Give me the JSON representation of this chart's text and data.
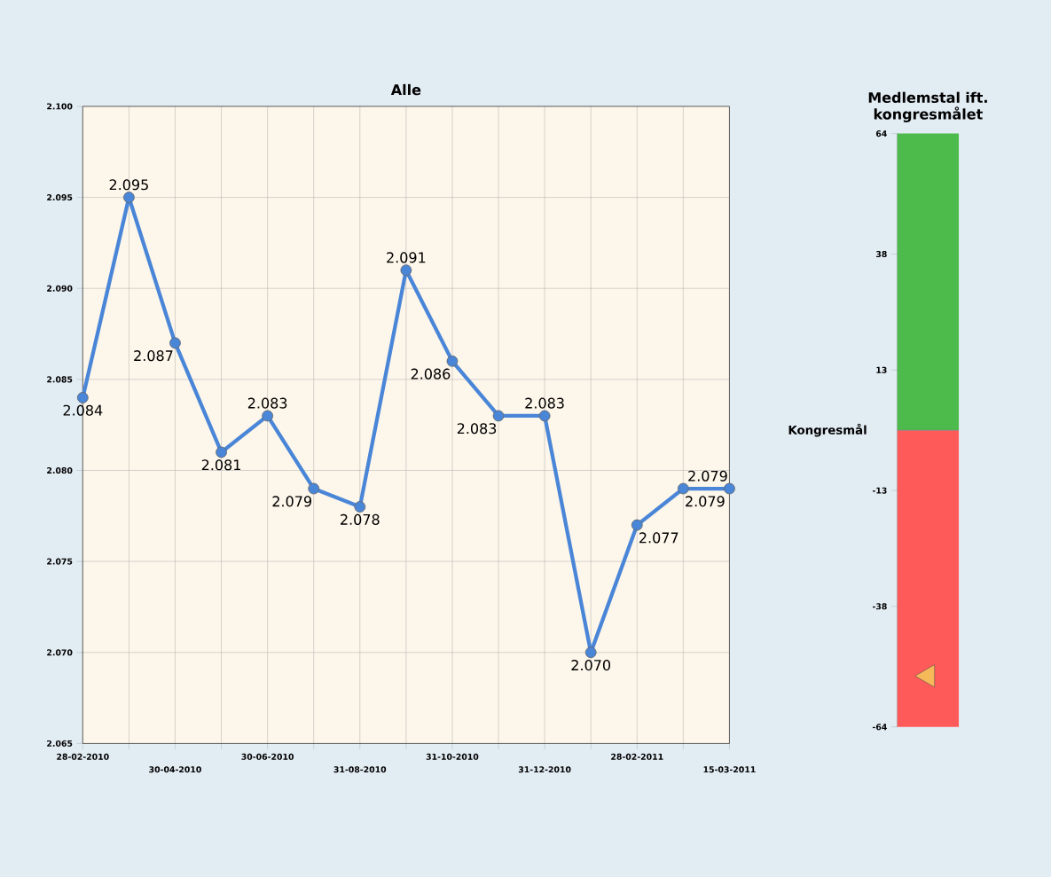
{
  "chart_data": [
    {
      "type": "line",
      "title": "Alle",
      "categories": [
        "28-02-2010",
        null,
        "30-04-2010",
        null,
        "30-06-2010",
        null,
        "31-08-2010",
        null,
        "31-10-2010",
        null,
        "31-12-2010",
        null,
        "28-02-2011",
        null,
        "15-03-2011"
      ],
      "values": [
        2084,
        2095,
        2087,
        2081,
        2083,
        2079,
        2078,
        2091,
        2086,
        2083,
        2083,
        2070,
        2077,
        2079,
        2079
      ],
      "value_labels": [
        "2.084",
        "2.095",
        "2.087",
        "2.081",
        "2.083",
        "2.079",
        "2.078",
        "2.091",
        "2.086",
        "2.083",
        "2.083",
        "2.070",
        "2.077",
        "2.079",
        "2.079"
      ],
      "color": "#4a86d8",
      "marker": "circle",
      "line_style": "solid",
      "grid": true,
      "ylim": [
        2065,
        2100
      ],
      "yticks": [
        {
          "value": 2065,
          "label": "2.065"
        },
        {
          "value": 2070,
          "label": "2.070"
        },
        {
          "value": 2075,
          "label": "2.075"
        },
        {
          "value": 2080,
          "label": "2.080"
        },
        {
          "value": 2085,
          "label": "2.085"
        },
        {
          "value": 2090,
          "label": "2.090"
        },
        {
          "value": 2095,
          "label": "2.095"
        },
        {
          "value": 2100,
          "label": "2.100"
        }
      ]
    },
    {
      "type": "scatter",
      "title": "Medlemstal ift. kongresmålet",
      "categories": [
        null
      ],
      "values": [
        -53
      ],
      "color": "#f5b95a",
      "marker": "triangle",
      "tick_labels": "y",
      "ylim": [
        -64,
        64
      ],
      "yticks": [
        -64,
        -38,
        -13,
        13,
        38,
        64
      ],
      "bands": [
        {
          "axis": "y",
          "from": 0,
          "to": 64,
          "color": "#4cbb4c"
        },
        {
          "axis": "y",
          "from": -64,
          "to": 0,
          "color": "#ff5a5a"
        }
      ],
      "ref_lines": [
        {
          "axis": "y",
          "value": 0,
          "label": "Kongresmål"
        }
      ]
    }
  ]
}
